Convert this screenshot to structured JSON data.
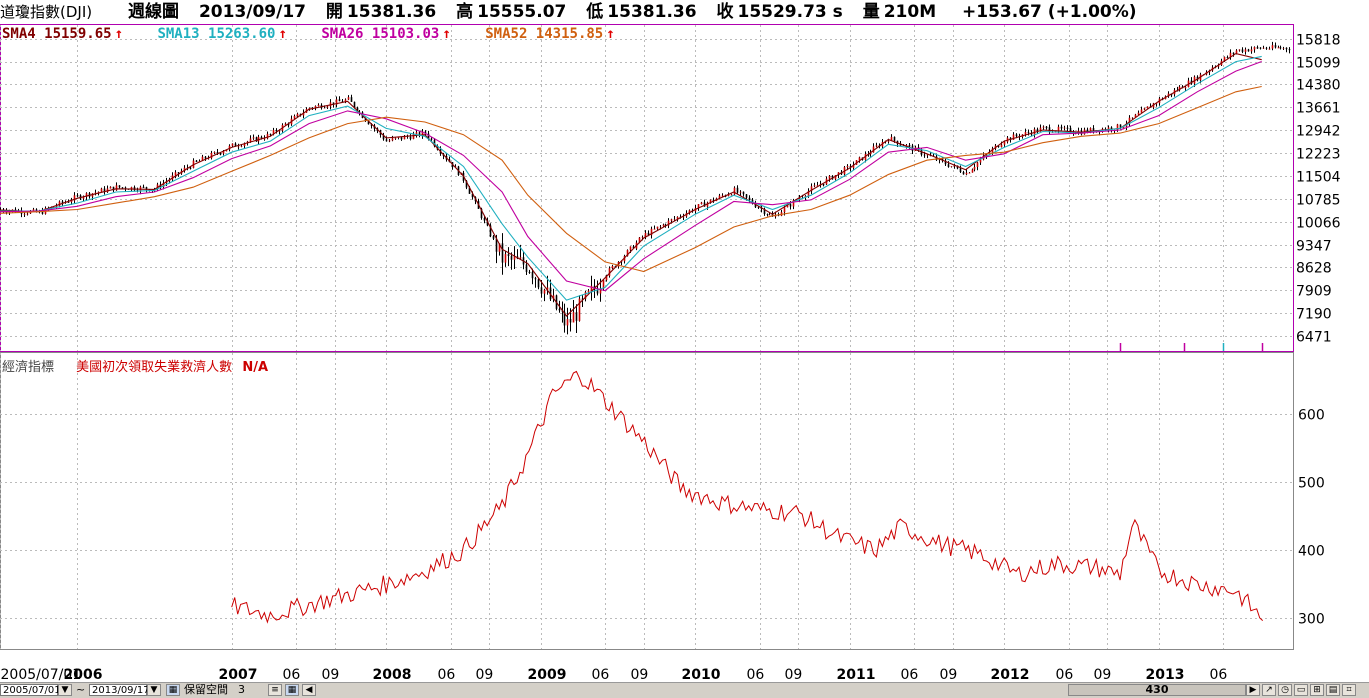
{
  "header": {
    "symbol": "道瓊指數(DJI)",
    "period": "週線圖",
    "date": "2013/09/17",
    "open_label": "開",
    "open": "15381.36",
    "high_label": "高",
    "high": "15555.07",
    "low_label": "低",
    "low": "15381.36",
    "close_label": "收",
    "close": "15529.73 s",
    "volume_label": "量",
    "volume": "210M",
    "change": "+153.67 (+1.00%)"
  },
  "moving_averages": [
    {
      "label": "SMA4 15159.65",
      "color": "#800000"
    },
    {
      "label": "SMA13 15263.60",
      "color": "#20b0c0"
    },
    {
      "label": "SMA26 15103.03",
      "color": "#c000a0"
    },
    {
      "label": "SMA52 14315.85",
      "color": "#d06010"
    }
  ],
  "econ_panel": {
    "label": "經濟指標",
    "series": "美國初次領取失業救濟人數",
    "na": "N/A"
  },
  "footer": {
    "start_date": "2005/07/01",
    "end_date": "2013/09/17",
    "tilde": "~",
    "reserve_label": "保留空間",
    "reserve_value": "3",
    "scroll_value": "430"
  },
  "chart_data": [
    {
      "type": "candlestick",
      "title": "道瓊指數(DJI) 週線圖",
      "y_ticks": [
        15818,
        15099,
        14380,
        13661,
        12942,
        12223,
        11504,
        10785,
        10066,
        9347,
        8628,
        7909,
        7190,
        6471
      ],
      "ylim": [
        6000,
        16250
      ],
      "x_ticks": [
        "2005/07/01",
        "2006",
        "2007",
        "06",
        "09",
        "2008",
        "06",
        "09",
        "2009",
        "06",
        "09",
        "2010",
        "06",
        "09",
        "2011",
        "06",
        "09",
        "2012",
        "06",
        "09",
        "2013",
        "06"
      ],
      "x": [
        "2005-07",
        "2005-10",
        "2006-01",
        "2006-04",
        "2006-07",
        "2006-10",
        "2007-01",
        "2007-04",
        "2007-07",
        "2007-10",
        "2008-01",
        "2008-04",
        "2008-07",
        "2008-10",
        "2008-12",
        "2009-03",
        "2009-06",
        "2009-09",
        "2010-01",
        "2010-04",
        "2010-07",
        "2010-10",
        "2011-01",
        "2011-04",
        "2011-07",
        "2011-10",
        "2012-01",
        "2012-04",
        "2012-07",
        "2012-10",
        "2013-01",
        "2013-04",
        "2013-07",
        "2013-09"
      ],
      "series": [
        {
          "name": "close",
          "values": [
            10450,
            10350,
            10850,
            11150,
            11100,
            11900,
            12450,
            12800,
            13650,
            13900,
            12600,
            12850,
            11400,
            8900,
            8700,
            6800,
            8400,
            9650,
            10500,
            11050,
            10200,
            11100,
            11800,
            12700,
            12150,
            11600,
            12650,
            13000,
            12900,
            13050,
            13900,
            14600,
            15450,
            15529
          ]
        },
        {
          "name": "SMA4",
          "values": [
            10430,
            10380,
            10800,
            11100,
            11080,
            11850,
            12400,
            12750,
            13600,
            13850,
            12700,
            12800,
            11500,
            9200,
            8750,
            7100,
            8300,
            9550,
            10450,
            11000,
            10300,
            11050,
            11750,
            12650,
            12200,
            11700,
            12600,
            12950,
            12880,
            13000,
            13850,
            14550,
            15350,
            15159
          ]
        },
        {
          "name": "SMA13",
          "values": [
            10400,
            10400,
            10650,
            11000,
            11050,
            11650,
            12250,
            12600,
            13400,
            13700,
            13000,
            12750,
            11800,
            10000,
            8950,
            7600,
            8000,
            9300,
            10300,
            10900,
            10450,
            10900,
            11600,
            12500,
            12300,
            11800,
            12400,
            12900,
            12850,
            13000,
            13650,
            14400,
            15100,
            15263
          ]
        },
        {
          "name": "SMA26",
          "values": [
            10380,
            10400,
            10550,
            10850,
            11000,
            11450,
            12050,
            12450,
            13150,
            13550,
            13300,
            12850,
            12150,
            11000,
            9600,
            8200,
            7900,
            8900,
            9950,
            10700,
            10600,
            10750,
            11400,
            12250,
            12400,
            12000,
            12200,
            12800,
            12850,
            12950,
            13400,
            14150,
            14800,
            15103
          ]
        },
        {
          "name": "SMA52",
          "values": [
            10330,
            10380,
            10450,
            10650,
            10850,
            11150,
            11650,
            12150,
            12700,
            13150,
            13350,
            13200,
            12800,
            12000,
            10900,
            9700,
            8800,
            8500,
            9250,
            9900,
            10250,
            10450,
            10900,
            11550,
            12000,
            12150,
            12250,
            12550,
            12750,
            12850,
            13150,
            13650,
            14150,
            14315
          ]
        }
      ]
    },
    {
      "type": "line",
      "title": "美國初次領取失業救濟人數",
      "y_ticks": [
        600,
        500,
        400,
        300
      ],
      "ylim": [
        255,
        690
      ],
      "x": [
        "2007-01",
        "2007-04",
        "2007-07",
        "2007-10",
        "2008-01",
        "2008-04",
        "2008-07",
        "2008-10",
        "2008-12",
        "2009-02",
        "2009-04",
        "2009-06",
        "2009-09",
        "2009-12",
        "2010-03",
        "2010-06",
        "2010-09",
        "2010-12",
        "2011-03",
        "2011-05",
        "2011-08",
        "2011-11",
        "2012-02",
        "2012-05",
        "2012-08",
        "2012-10",
        "2012-11",
        "2013-01",
        "2013-04",
        "2013-07",
        "2013-09"
      ],
      "values": [
        318,
        305,
        320,
        335,
        350,
        370,
        400,
        465,
        540,
        630,
        660,
        620,
        560,
        490,
        470,
        460,
        455,
        420,
        400,
        435,
        410,
        395,
        365,
        380,
        375,
        365,
        440,
        370,
        350,
        340,
        300
      ]
    }
  ]
}
